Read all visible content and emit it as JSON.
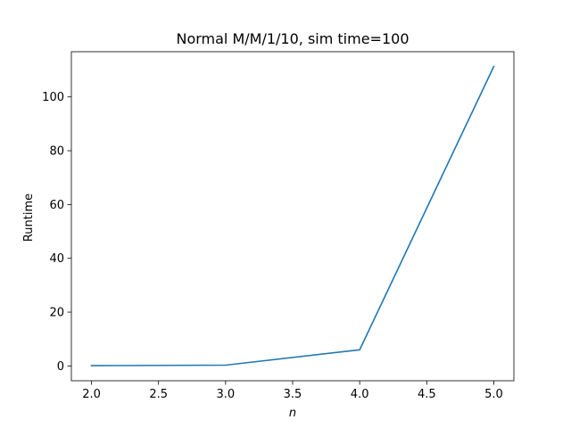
{
  "chart_data": {
    "type": "line",
    "title": "Normal M/M/1/10, sim time=100",
    "xlabel": "n",
    "ylabel": "Runtime",
    "x": [
      2.0,
      3.0,
      4.0,
      5.0
    ],
    "series": [
      {
        "values": [
          0.1,
          0.3,
          6.0,
          111.3
        ],
        "color": "#1f77b4"
      }
    ],
    "xlim": [
      1.85,
      5.15
    ],
    "ylim": [
      -5.5,
      116.8
    ],
    "xticks": [
      2.0,
      2.5,
      3.0,
      3.5,
      4.0,
      4.5,
      5.0
    ],
    "xtick_labels": [
      "2.0",
      "2.5",
      "3.0",
      "3.5",
      "4.0",
      "4.5",
      "5.0"
    ],
    "yticks": [
      0,
      20,
      40,
      60,
      80,
      100
    ],
    "ytick_labels": [
      "0",
      "20",
      "40",
      "60",
      "80",
      "100"
    ],
    "grid": false,
    "legend": false
  }
}
